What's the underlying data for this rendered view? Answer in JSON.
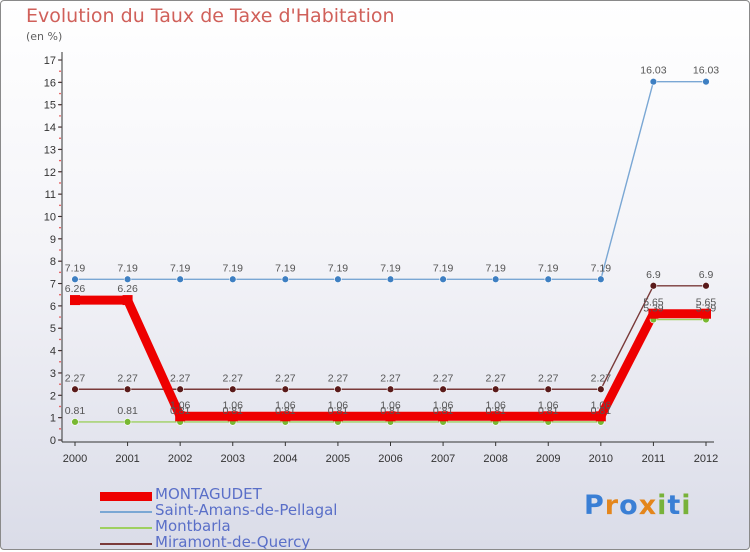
{
  "title": "Evolution du Taux de Taxe d'Habitation",
  "unit_label": "(en %)",
  "logo": {
    "text": "Proxiti",
    "letters": [
      "P",
      "r",
      "o",
      "x",
      "i",
      "t",
      "i"
    ],
    "colors": [
      "#3a7fd5",
      "#e4861c",
      "#3a7fd5",
      "#e4861c",
      "#78b23a",
      "#3a7fd5",
      "#78b23a"
    ]
  },
  "chart_data": {
    "type": "line",
    "title": "Evolution du Taux de Taxe d'Habitation",
    "ylabel": "(en %)",
    "xlabel": "",
    "ylim": [
      0,
      17
    ],
    "y_ticks": [
      "0",
      "1",
      "2",
      "3",
      "4",
      "5",
      "6",
      "7",
      "8",
      "9",
      "10",
      "11",
      "12",
      "13",
      "14",
      "15",
      "16",
      "17"
    ],
    "x": [
      "2000",
      "2001",
      "2002",
      "2003",
      "2004",
      "2005",
      "2006",
      "2007",
      "2008",
      "2009",
      "2010",
      "2011",
      "2012"
    ],
    "series": [
      {
        "name": "Saint-Amans-de-Pellagal",
        "color": "#7aa7d4",
        "marker_color": "#3e7fc2",
        "values": [
          7.19,
          7.19,
          7.19,
          7.19,
          7.19,
          7.19,
          7.19,
          7.19,
          7.19,
          7.19,
          7.19,
          16.03,
          16.03
        ],
        "labels": [
          "7.19",
          "7.19",
          "7.19",
          "7.19",
          "7.19",
          "7.19",
          "7.19",
          "7.19",
          "7.19",
          "7.19",
          "7.19",
          "16.03",
          "16.03"
        ]
      },
      {
        "name": "Miramont-de-Quercy",
        "color": "#7a3a3a",
        "marker_color": "#5a1a1a",
        "values": [
          2.27,
          2.27,
          2.27,
          2.27,
          2.27,
          2.27,
          2.27,
          2.27,
          2.27,
          2.27,
          2.27,
          6.9,
          6.9
        ],
        "labels": [
          "2.27",
          "2.27",
          "2.27",
          "2.27",
          "2.27",
          "2.27",
          "2.27",
          "2.27",
          "2.27",
          "2.27",
          "2.27",
          "6.9",
          "6.9"
        ]
      },
      {
        "name": "Montbarla",
        "color": "#9ed060",
        "marker_color": "#78b832",
        "values": [
          0.81,
          0.81,
          0.81,
          0.81,
          0.81,
          0.81,
          0.81,
          0.81,
          0.81,
          0.81,
          0.81,
          5.39,
          5.39
        ],
        "labels": [
          "0.81",
          "0.81",
          "0.81",
          "0.81",
          "0.81",
          "0.81",
          "0.81",
          "0.81",
          "0.81",
          "0.81",
          "0.81",
          "5.39",
          "5.39"
        ]
      },
      {
        "name": "MONTAGUDET",
        "color": "#ee0000",
        "marker_color": "#ee0000",
        "values": [
          6.26,
          6.26,
          1.06,
          1.06,
          1.06,
          1.06,
          1.06,
          1.06,
          1.06,
          1.06,
          1.06,
          5.65,
          5.65
        ],
        "labels": [
          "6.26",
          "6.26",
          "1.06",
          "1.06",
          "1.06",
          "1.06",
          "1.06",
          "1.06",
          "1.06",
          "1.06",
          "1.06",
          "5.65",
          "5.65"
        ],
        "thick": true
      }
    ],
    "legend": [
      "MONTAGUDET",
      "Saint-Amans-de-Pellagal",
      "Montbarla",
      "Miramont-de-Quercy"
    ]
  }
}
